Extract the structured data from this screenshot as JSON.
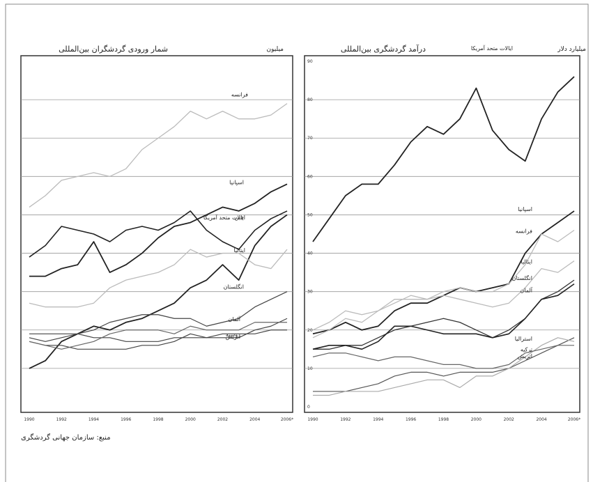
{
  "source": "منبع: سازمان جهانی گردشگری",
  "chart_data": [
    {
      "type": "line",
      "title": "شمار ورودی گردشگران بین‌المللی",
      "unit": "میلیون",
      "grid": true,
      "x": [
        1990,
        1991,
        1992,
        1993,
        1994,
        1995,
        1996,
        1997,
        1998,
        1999,
        2000,
        2001,
        2002,
        2003,
        2004,
        2005,
        2006
      ],
      "xticks": [
        "1990",
        "1992",
        "1994",
        "1996",
        "1998",
        "2000",
        "2002",
        "2004",
        "2006*"
      ],
      "yticks": [],
      "ylim": [
        0,
        90
      ],
      "series": [
        {
          "name": "فرانسه",
          "values": [
            52,
            55,
            59,
            60,
            61,
            60,
            62,
            67,
            70,
            73,
            77,
            75,
            77,
            75,
            75,
            76,
            79
          ],
          "color": "#bbbbbb",
          "width": 1.3
        },
        {
          "name": "اسپانیا",
          "values": [
            34,
            34,
            36,
            37,
            43,
            35,
            37,
            40,
            44,
            47,
            48,
            50,
            52,
            51,
            53,
            56,
            58
          ],
          "color": "#222222",
          "width": 1.8
        },
        {
          "name": "ایالات متحد آمریکا",
          "values": [
            39,
            42,
            47,
            46,
            45,
            43,
            46,
            47,
            46,
            48,
            51,
            46,
            43,
            41,
            46,
            49,
            51
          ],
          "color": "#222222",
          "width": 1.6
        },
        {
          "name": "چین",
          "values": [
            10,
            12,
            17,
            19,
            21,
            20,
            22,
            23,
            25,
            27,
            31,
            33,
            37,
            33,
            42,
            47,
            50
          ],
          "color": "#222222",
          "width": 1.8
        },
        {
          "name": "ایتالیا",
          "values": [
            27,
            26,
            26,
            26,
            27,
            31,
            33,
            34,
            35,
            37,
            41,
            39,
            40,
            40,
            37,
            36,
            41
          ],
          "color": "#bbbbbb",
          "width": 1.3
        },
        {
          "name": "انگلستان",
          "values": [
            18,
            17,
            18,
            19,
            20,
            22,
            23,
            24,
            24,
            23,
            23,
            21,
            22,
            23,
            26,
            28,
            30
          ],
          "color": "#444444",
          "width": 1.2
        },
        {
          "name": "آلمان",
          "values": [
            17,
            16,
            16,
            15,
            15,
            15,
            15,
            16,
            16,
            17,
            19,
            18,
            18,
            18,
            20,
            21,
            23
          ],
          "color": "#444444",
          "width": 1.2
        },
        {
          "name": "اتریش",
          "values": [
            19,
            19,
            19,
            19,
            18,
            18,
            17,
            17,
            17,
            18,
            18,
            18,
            19,
            19,
            19,
            20,
            20
          ],
          "color": "#444444",
          "width": 1.2
        },
        {
          "name": "روسیه",
          "values": [
            17,
            16,
            15,
            16,
            17,
            19,
            20,
            20,
            20,
            19,
            21,
            20,
            20,
            20,
            22,
            22,
            22
          ],
          "color": "#666666",
          "width": 1.2
        }
      ]
    },
    {
      "type": "line",
      "title": "درآمد گردشگری بین‌المللی",
      "unit": "میلیارد دلار",
      "grid": true,
      "x": [
        1990,
        1991,
        1992,
        1993,
        1994,
        1995,
        1996,
        1997,
        1998,
        1999,
        2000,
        2001,
        2002,
        2003,
        2004,
        2005,
        2006
      ],
      "xticks": [
        "1990",
        "1992",
        "1994",
        "1996",
        "1998",
        "2000",
        "2002",
        "2004",
        "2006*"
      ],
      "yticks": [
        "0",
        "10",
        "20",
        "30",
        "40",
        "50",
        "60",
        "70",
        "80",
        "90"
      ],
      "ylim": [
        0,
        90
      ],
      "series": [
        {
          "name": "ایالات متحد آمریکا",
          "values": [
            43,
            49,
            55,
            58,
            58,
            63,
            69,
            73,
            71,
            75,
            83,
            72,
            67,
            64,
            75,
            82,
            86
          ],
          "color": "#222222",
          "width": 1.8
        },
        {
          "name": "اسپانیا",
          "values": [
            19,
            20,
            22,
            20,
            21,
            25,
            27,
            27,
            29,
            31,
            30,
            31,
            32,
            40,
            45,
            48,
            51
          ],
          "color": "#222222",
          "width": 1.8
        },
        {
          "name": "فرانسه",
          "values": [
            20,
            22,
            25,
            24,
            25,
            28,
            28,
            28,
            30,
            31,
            30,
            30,
            32,
            37,
            45,
            43,
            46
          ],
          "color": "#bbbbbb",
          "width": 1.3
        },
        {
          "name": "ایتالیا",
          "values": [
            18,
            20,
            23,
            22,
            25,
            27,
            29,
            28,
            29,
            28,
            27,
            26,
            27,
            31,
            36,
            35,
            38
          ],
          "color": "#bbbbbb",
          "width": 1.3
        },
        {
          "name": "انگلستان",
          "values": [
            15,
            15,
            16,
            16,
            18,
            20,
            21,
            22,
            23,
            22,
            20,
            18,
            20,
            23,
            28,
            30,
            33
          ],
          "color": "#333333",
          "width": 1.3
        },
        {
          "name": "آلمان",
          "values": [
            15,
            16,
            16,
            15,
            17,
            21,
            21,
            20,
            19,
            19,
            19,
            18,
            19,
            23,
            28,
            29,
            32
          ],
          "color": "#222222",
          "width": 1.6
        },
        {
          "name": "استرالیا",
          "values": [
            4,
            4,
            4,
            5,
            6,
            8,
            9,
            9,
            8,
            9,
            9,
            9,
            10,
            12,
            14,
            16,
            18
          ],
          "color": "#555555",
          "width": 1.2
        },
        {
          "name": "ترکیه",
          "values": [
            3,
            3,
            4,
            4,
            4,
            5,
            6,
            7,
            7,
            5,
            8,
            8,
            10,
            13,
            16,
            18,
            17
          ],
          "color": "#aaaaaa",
          "width": 1.2
        },
        {
          "name": "اتریش",
          "values": [
            13,
            14,
            14,
            13,
            12,
            13,
            13,
            12,
            11,
            11,
            10,
            10,
            11,
            14,
            15,
            16,
            16
          ],
          "color": "#666666",
          "width": 1.2
        }
      ]
    }
  ]
}
